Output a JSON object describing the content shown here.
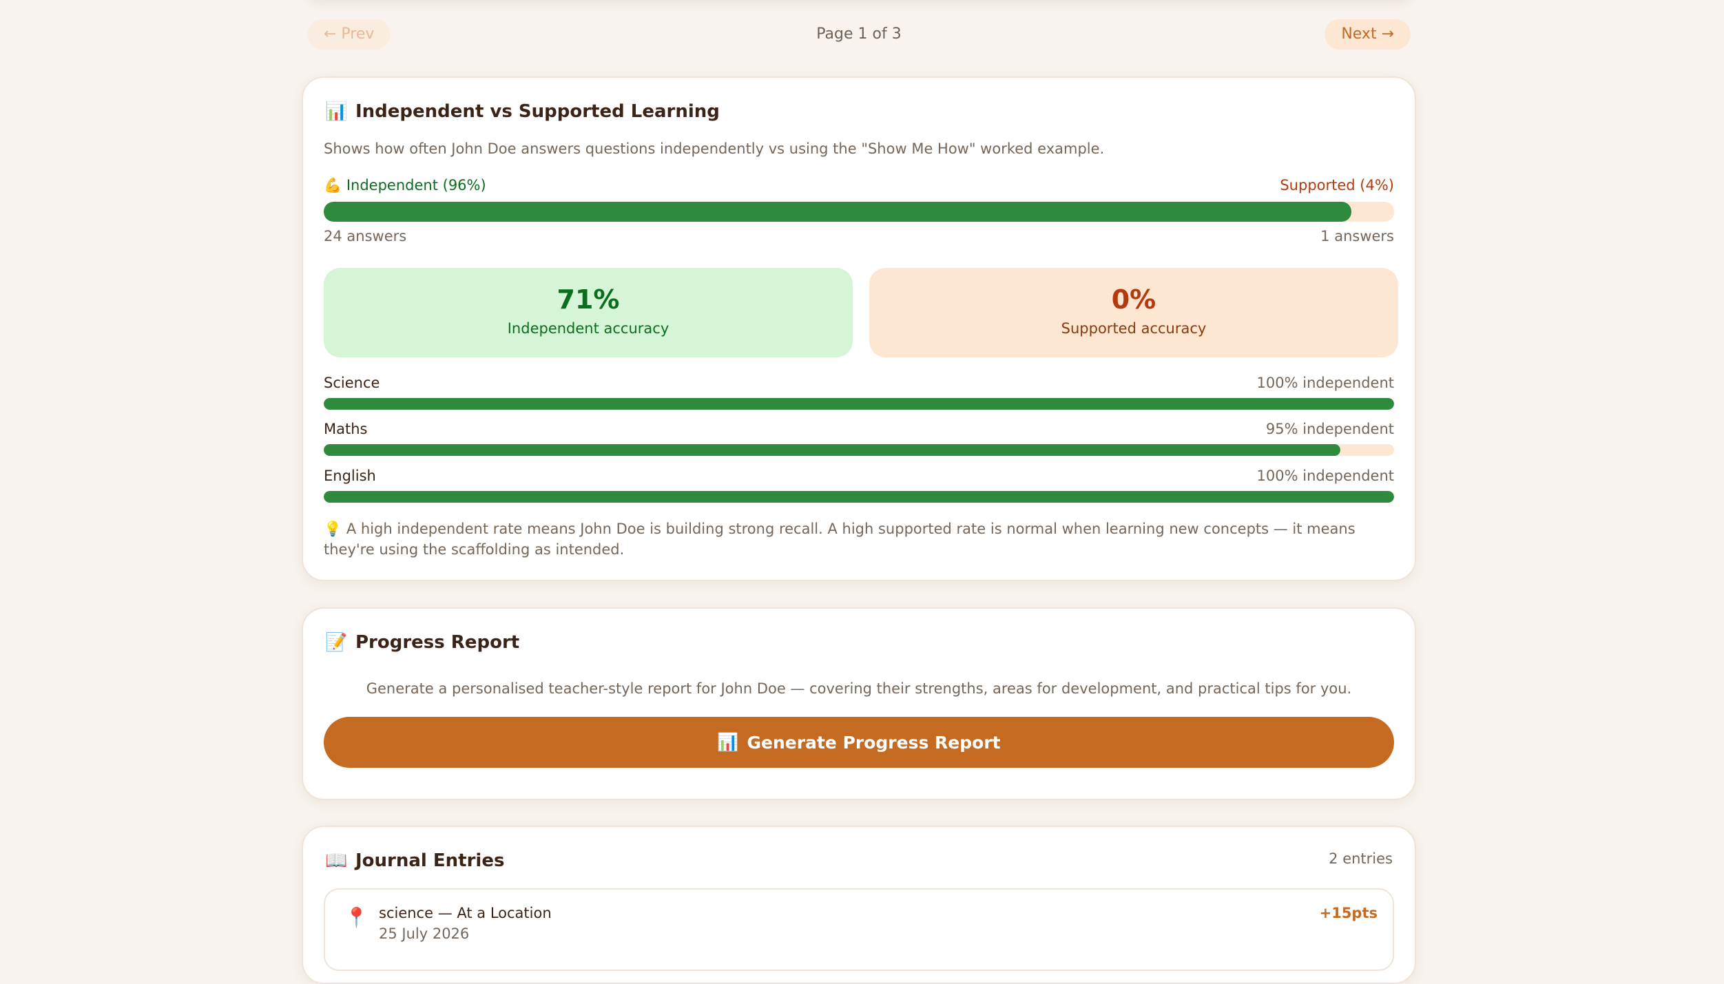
{
  "pager": {
    "prev_label": "← Prev",
    "page_label": "Page 1 of 3",
    "next_label": "Next →"
  },
  "independence": {
    "icon": "bar-chart-icon",
    "title": "Independent vs Supported Learning",
    "description": "Shows how often John Doe answers questions independently vs using the \"Show Me How\" worked example.",
    "independent_icon": "flexed-biceps-icon",
    "independent_label": "Independent (96%)",
    "supported_label": "Supported (4%)",
    "independent_fraction": 0.96,
    "independent_count": "24 answers",
    "supported_count": "1 answers",
    "independent_accuracy": "71%",
    "independent_accuracy_label": "Independent accuracy",
    "supported_accuracy": "0%",
    "supported_accuracy_label": "Supported accuracy",
    "subjects": [
      {
        "name": "Science",
        "pct_label": "100% independent",
        "fraction": 1.0
      },
      {
        "name": "Maths",
        "pct_label": "95% independent",
        "fraction": 0.95
      },
      {
        "name": "English",
        "pct_label": "100% independent",
        "fraction": 1.0
      }
    ],
    "tip_icon": "lightbulb-icon",
    "tip": "A high independent rate means John Doe is building strong recall. A high supported rate is normal when learning new concepts — it means they're using the scaffolding as intended."
  },
  "report": {
    "icon": "memo-icon",
    "title": "Progress Report",
    "description": "Generate a personalised teacher-style report for John Doe — covering their strengths, areas for development, and practical tips for you.",
    "button_icon": "bar-chart-icon",
    "button_label": "Generate Progress Report"
  },
  "journal": {
    "icon": "open-book-icon",
    "title": "Journal Entries",
    "count": "2 entries",
    "entries": [
      {
        "icon": "round-pushpin-icon",
        "title": "science — At a Location",
        "date": "25 July 2026",
        "points": "+15pts"
      }
    ]
  },
  "colors": {
    "background": "#f8f3ee",
    "accent": "#c56a21",
    "independent_green": "#2e8b3e",
    "supported_track": "#fde6d2",
    "independent_text": "#0b6e1e",
    "supported_text": "#b33a0c"
  }
}
